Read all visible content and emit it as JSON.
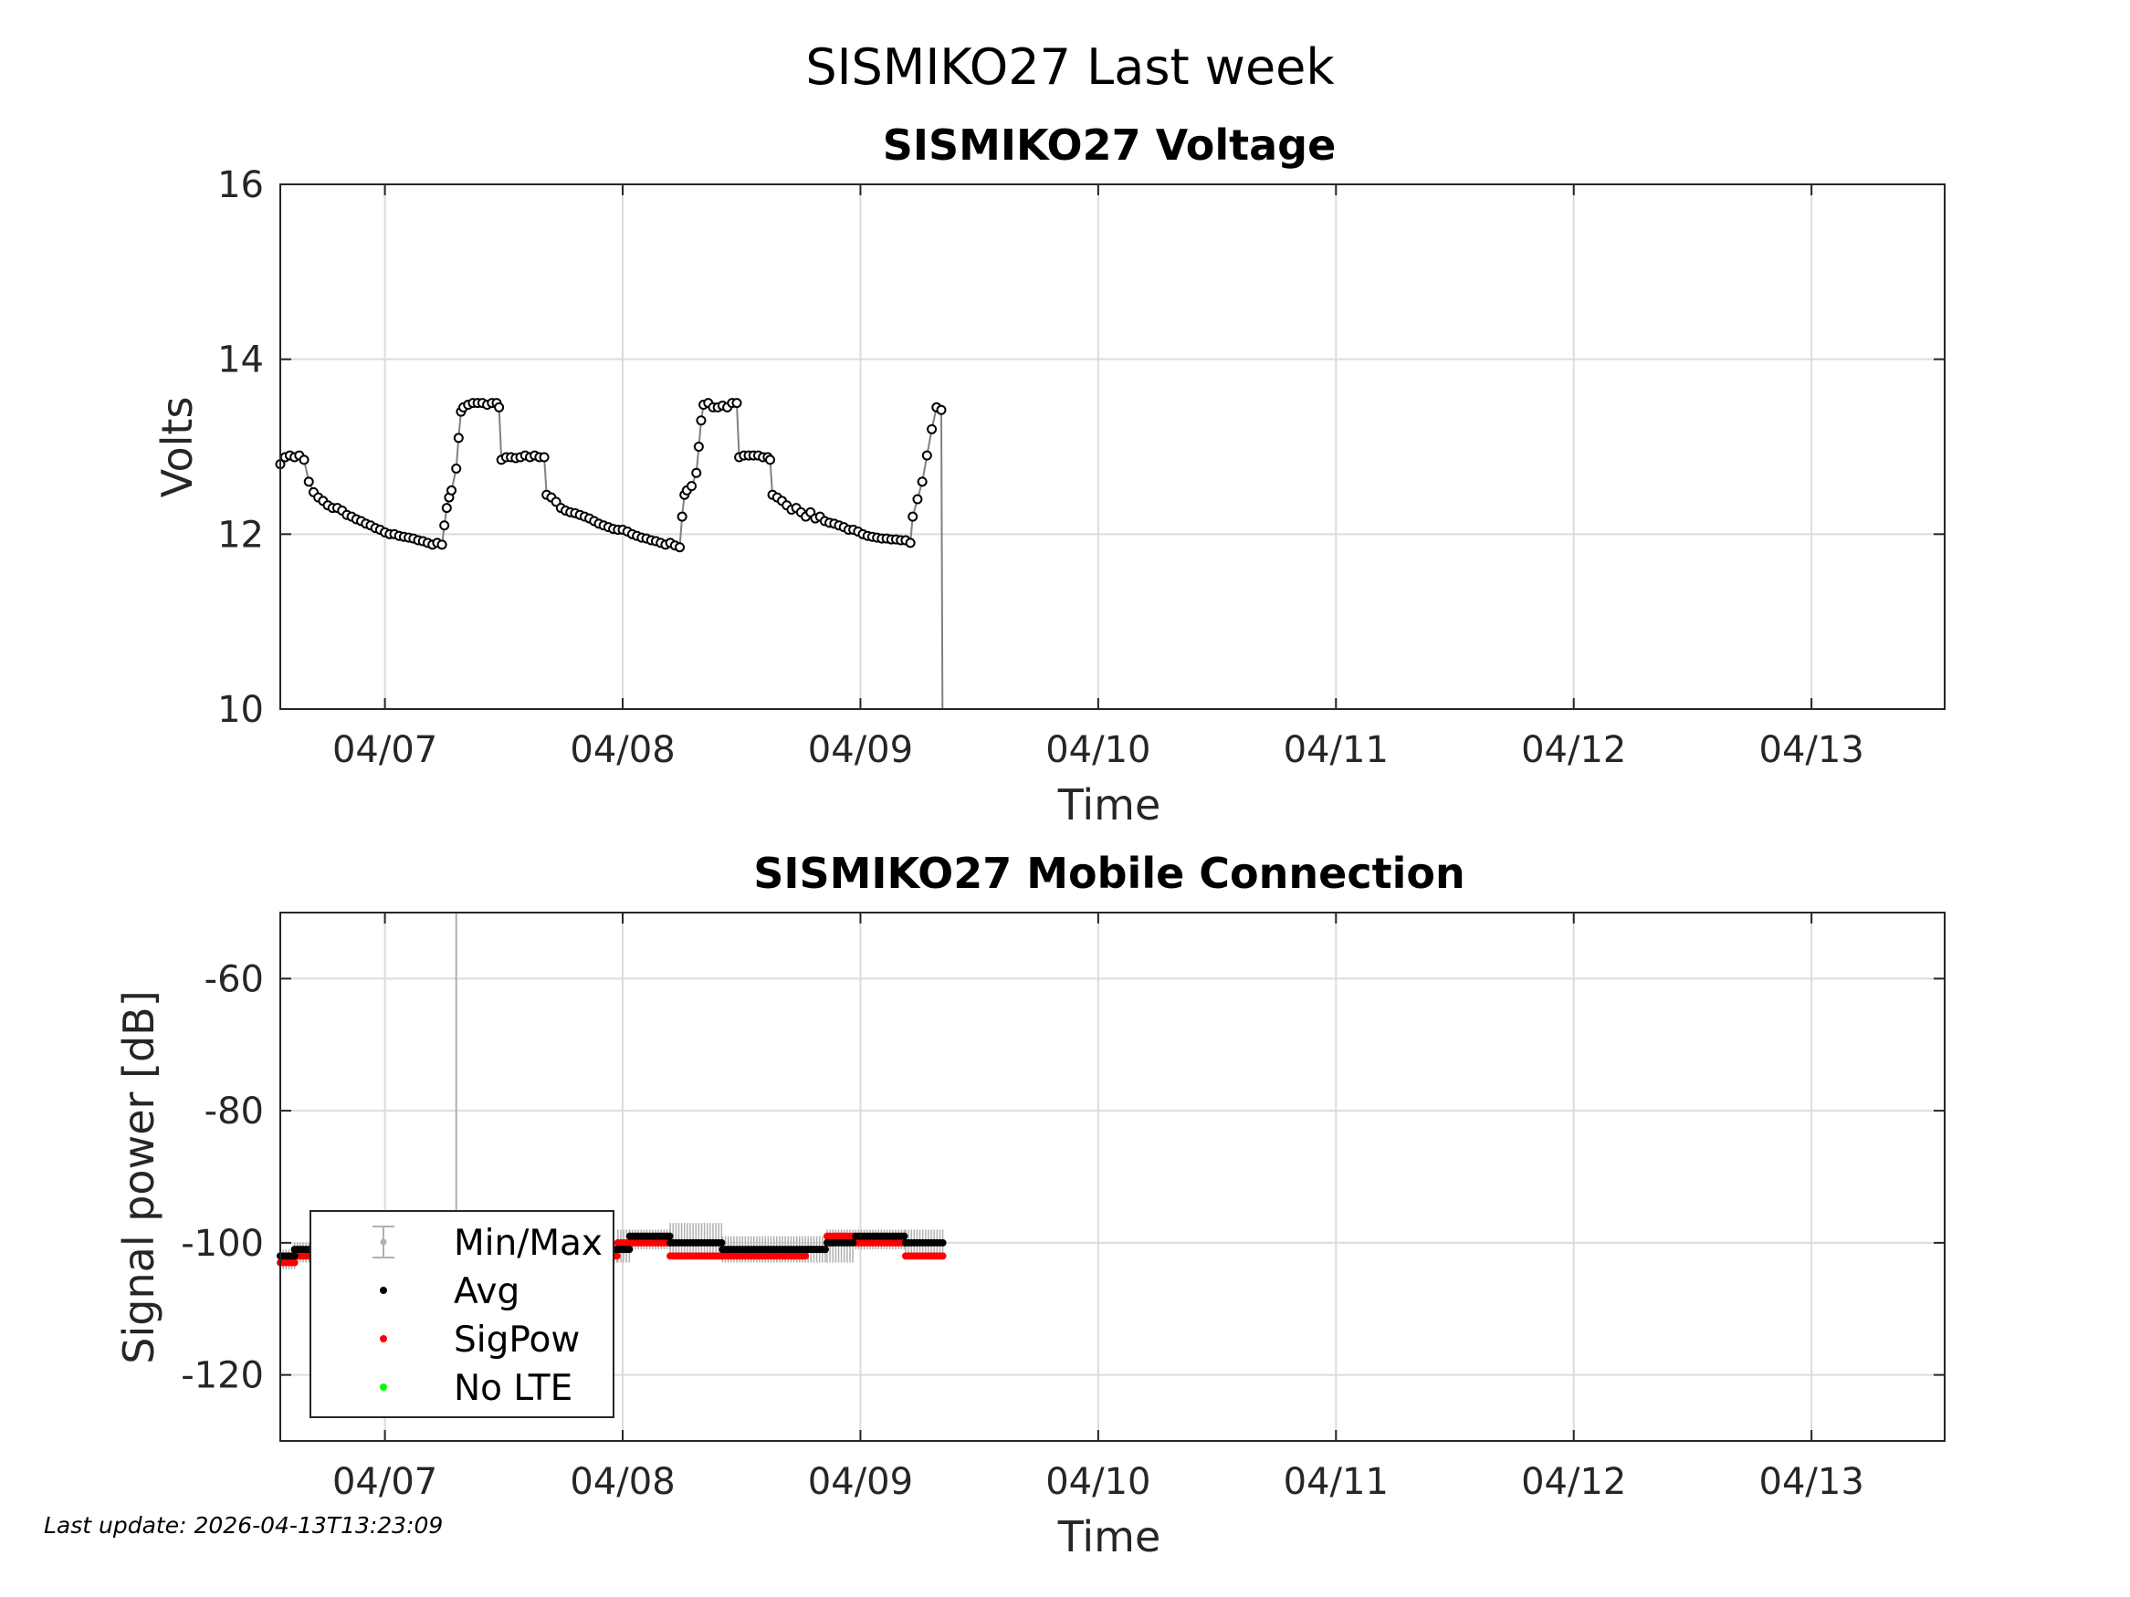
{
  "figure": {
    "title": "SISMIKO27 Last week",
    "footer": "Last update: 2026-04-13T13:23:09"
  },
  "colors": {
    "avg": "#000000",
    "sigpow": "#ff0000",
    "nolte": "#00ff00",
    "minmax": "#b0b0b0",
    "line": "#808080"
  },
  "chart_data": [
    {
      "type": "line",
      "title": "SISMIKO27 Voltage",
      "xlabel": "Time",
      "ylabel": "Volts",
      "xlim_days": [
        6.56,
        13.56
      ],
      "ylim": [
        10,
        16
      ],
      "yticks": [
        "10",
        "12",
        "14",
        "16"
      ],
      "xticks": [
        {
          "day": 7,
          "label": "04/07"
        },
        {
          "day": 8,
          "label": "04/08"
        },
        {
          "day": 9,
          "label": "04/09"
        },
        {
          "day": 10,
          "label": "04/10"
        },
        {
          "day": 11,
          "label": "04/11"
        },
        {
          "day": 12,
          "label": "04/12"
        },
        {
          "day": 13,
          "label": "04/13"
        }
      ],
      "grid": true,
      "series": [
        {
          "points": [
            [
              6.56,
              12.8
            ],
            [
              6.58,
              12.88
            ],
            [
              6.6,
              12.9
            ],
            [
              6.62,
              12.88
            ],
            [
              6.64,
              12.9
            ],
            [
              6.66,
              12.85
            ],
            [
              6.68,
              12.6
            ],
            [
              6.7,
              12.48
            ],
            [
              6.72,
              12.42
            ],
            [
              6.74,
              12.38
            ],
            [
              6.76,
              12.33
            ],
            [
              6.78,
              12.3
            ],
            [
              6.8,
              12.3
            ],
            [
              6.82,
              12.27
            ],
            [
              6.84,
              12.22
            ],
            [
              6.86,
              12.2
            ],
            [
              6.88,
              12.17
            ],
            [
              6.9,
              12.15
            ],
            [
              6.92,
              12.12
            ],
            [
              6.94,
              12.1
            ],
            [
              6.96,
              12.07
            ],
            [
              6.98,
              12.05
            ],
            [
              7.0,
              12.02
            ],
            [
              7.02,
              12.0
            ],
            [
              7.04,
              12.0
            ],
            [
              7.06,
              11.98
            ],
            [
              7.08,
              11.97
            ],
            [
              7.1,
              11.96
            ],
            [
              7.12,
              11.95
            ],
            [
              7.14,
              11.93
            ],
            [
              7.16,
              11.92
            ],
            [
              7.18,
              11.9
            ],
            [
              7.2,
              11.88
            ],
            [
              7.22,
              11.9
            ],
            [
              7.24,
              11.88
            ],
            [
              7.25,
              12.1
            ],
            [
              7.26,
              12.3
            ],
            [
              7.27,
              12.42
            ],
            [
              7.28,
              12.5
            ],
            [
              7.3,
              12.75
            ],
            [
              7.31,
              13.1
            ],
            [
              7.32,
              13.4
            ],
            [
              7.33,
              13.45
            ],
            [
              7.35,
              13.48
            ],
            [
              7.37,
              13.5
            ],
            [
              7.39,
              13.5
            ],
            [
              7.41,
              13.5
            ],
            [
              7.43,
              13.48
            ],
            [
              7.45,
              13.5
            ],
            [
              7.47,
              13.5
            ],
            [
              7.48,
              13.45
            ],
            [
              7.49,
              12.85
            ],
            [
              7.51,
              12.88
            ],
            [
              7.53,
              12.88
            ],
            [
              7.55,
              12.87
            ],
            [
              7.57,
              12.88
            ],
            [
              7.59,
              12.9
            ],
            [
              7.61,
              12.88
            ],
            [
              7.63,
              12.9
            ],
            [
              7.65,
              12.88
            ],
            [
              7.67,
              12.88
            ],
            [
              7.68,
              12.45
            ],
            [
              7.7,
              12.42
            ],
            [
              7.72,
              12.37
            ],
            [
              7.74,
              12.3
            ],
            [
              7.76,
              12.27
            ],
            [
              7.78,
              12.25
            ],
            [
              7.8,
              12.24
            ],
            [
              7.82,
              12.22
            ],
            [
              7.84,
              12.2
            ],
            [
              7.86,
              12.18
            ],
            [
              7.88,
              12.15
            ],
            [
              7.9,
              12.12
            ],
            [
              7.92,
              12.1
            ],
            [
              7.94,
              12.08
            ],
            [
              7.96,
              12.06
            ],
            [
              7.98,
              12.05
            ],
            [
              8.0,
              12.05
            ],
            [
              8.02,
              12.03
            ],
            [
              8.04,
              12.0
            ],
            [
              8.06,
              11.98
            ],
            [
              8.08,
              11.96
            ],
            [
              8.1,
              11.95
            ],
            [
              8.12,
              11.93
            ],
            [
              8.14,
              11.92
            ],
            [
              8.16,
              11.9
            ],
            [
              8.18,
              11.88
            ],
            [
              8.2,
              11.9
            ],
            [
              8.22,
              11.87
            ],
            [
              8.24,
              11.85
            ],
            [
              8.25,
              12.2
            ],
            [
              8.26,
              12.45
            ],
            [
              8.27,
              12.5
            ],
            [
              8.29,
              12.55
            ],
            [
              8.31,
              12.7
            ],
            [
              8.32,
              13.0
            ],
            [
              8.33,
              13.3
            ],
            [
              8.34,
              13.48
            ],
            [
              8.36,
              13.5
            ],
            [
              8.38,
              13.45
            ],
            [
              8.4,
              13.45
            ],
            [
              8.42,
              13.47
            ],
            [
              8.44,
              13.45
            ],
            [
              8.46,
              13.5
            ],
            [
              8.48,
              13.5
            ],
            [
              8.49,
              12.88
            ],
            [
              8.51,
              12.9
            ],
            [
              8.53,
              12.9
            ],
            [
              8.55,
              12.9
            ],
            [
              8.57,
              12.9
            ],
            [
              8.59,
              12.88
            ],
            [
              8.61,
              12.88
            ],
            [
              8.62,
              12.85
            ],
            [
              8.63,
              12.45
            ],
            [
              8.65,
              12.42
            ],
            [
              8.67,
              12.38
            ],
            [
              8.69,
              12.33
            ],
            [
              8.71,
              12.28
            ],
            [
              8.73,
              12.3
            ],
            [
              8.75,
              12.25
            ],
            [
              8.77,
              12.2
            ],
            [
              8.79,
              12.25
            ],
            [
              8.81,
              12.18
            ],
            [
              8.83,
              12.2
            ],
            [
              8.85,
              12.15
            ],
            [
              8.87,
              12.13
            ],
            [
              8.89,
              12.12
            ],
            [
              8.91,
              12.1
            ],
            [
              8.93,
              12.08
            ],
            [
              8.95,
              12.05
            ],
            [
              8.97,
              12.05
            ],
            [
              8.99,
              12.03
            ],
            [
              9.01,
              12.0
            ],
            [
              9.03,
              11.98
            ],
            [
              9.05,
              11.97
            ],
            [
              9.07,
              11.96
            ],
            [
              9.09,
              11.95
            ],
            [
              9.11,
              11.95
            ],
            [
              9.13,
              11.94
            ],
            [
              9.15,
              11.94
            ],
            [
              9.17,
              11.93
            ],
            [
              9.19,
              11.93
            ],
            [
              9.21,
              11.9
            ],
            [
              9.22,
              12.2
            ],
            [
              9.24,
              12.4
            ],
            [
              9.26,
              12.6
            ],
            [
              9.28,
              12.9
            ],
            [
              9.3,
              13.2
            ],
            [
              9.32,
              13.45
            ],
            [
              9.34,
              13.42
            ]
          ]
        }
      ],
      "drop_to": 10.0
    },
    {
      "type": "scatter",
      "title": "SISMIKO27 Mobile Connection",
      "xlabel": "Time",
      "ylabel": "Signal power [dB]",
      "xlim_days": [
        6.56,
        13.56
      ],
      "ylim": [
        -130,
        -50
      ],
      "yticks": [
        "-120",
        "-100",
        "-80",
        "-60"
      ],
      "ytick_values": [
        -120,
        -100,
        -80,
        -60
      ],
      "xticks": [
        {
          "day": 7,
          "label": "04/07"
        },
        {
          "day": 8,
          "label": "04/08"
        },
        {
          "day": 9,
          "label": "04/09"
        },
        {
          "day": 10,
          "label": "04/10"
        },
        {
          "day": 11,
          "label": "04/11"
        },
        {
          "day": 12,
          "label": "04/12"
        },
        {
          "day": 13,
          "label": "04/13"
        }
      ],
      "grid": true,
      "legend": {
        "placement": "bottom-left",
        "entries": [
          "Min/Max",
          "Avg",
          "SigPow",
          "No LTE"
        ]
      },
      "segments": [
        {
          "from": 6.56,
          "to": 6.62,
          "avg": -102,
          "sig": -103,
          "min": -104,
          "max": -101
        },
        {
          "from": 6.62,
          "to": 7.98,
          "avg": -101,
          "sig": -102,
          "min": -103,
          "max": -100
        },
        {
          "from": 7.98,
          "to": 8.03,
          "avg": -101,
          "sig": -100,
          "min": -103,
          "max": -98
        },
        {
          "from": 8.03,
          "to": 8.2,
          "avg": -99,
          "sig": -100,
          "min": -101,
          "max": -98
        },
        {
          "from": 8.2,
          "to": 8.42,
          "avg": -100,
          "sig": -102,
          "min": -102,
          "max": -97
        },
        {
          "from": 8.42,
          "to": 8.78,
          "avg": -101,
          "sig": -102,
          "min": -103,
          "max": -99
        },
        {
          "from": 8.78,
          "to": 8.86,
          "avg": -101,
          "sig": -101,
          "min": -103,
          "max": -99
        },
        {
          "from": 8.86,
          "to": 8.98,
          "avg": -100,
          "sig": -99,
          "min": -103,
          "max": -98
        },
        {
          "from": 8.98,
          "to": 9.19,
          "avg": -99,
          "sig": -100,
          "min": -101,
          "max": -98
        },
        {
          "from": 9.19,
          "to": 9.35,
          "avg": -100,
          "sig": -102,
          "min": -102,
          "max": -98
        }
      ],
      "spike": {
        "day": 7.3,
        "low": -103,
        "high": -50
      }
    }
  ]
}
